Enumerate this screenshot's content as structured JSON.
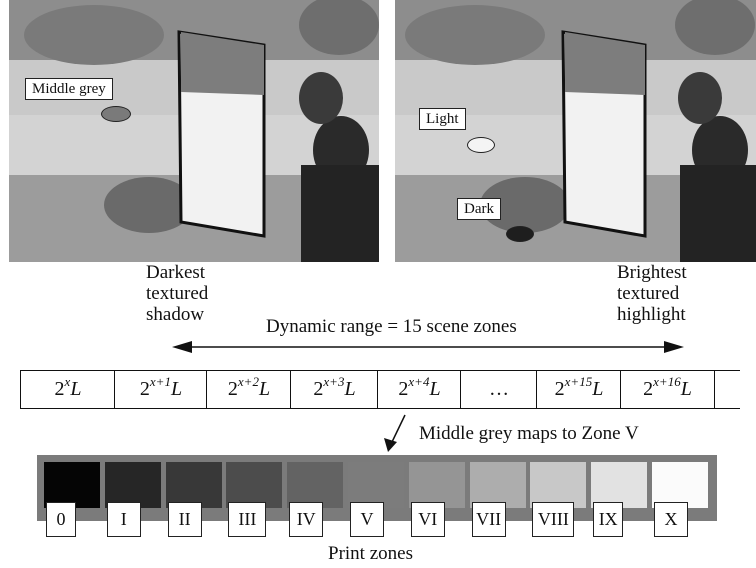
{
  "photos": {
    "left": {
      "annotations": [
        {
          "label": "Middle grey",
          "ellipse_color": "#7a7a7a"
        }
      ]
    },
    "right": {
      "annotations": [
        {
          "label": "Light",
          "ellipse_color": "#f4f4f4"
        },
        {
          "label": "Dark",
          "ellipse_color": "#1e1e1e"
        }
      ]
    }
  },
  "captions": {
    "darkest": [
      "Darkest",
      "textured",
      "shadow"
    ],
    "brightest": [
      "Brightest",
      "textured",
      "highlight"
    ],
    "dynamic_range": "Dynamic range = 15 scene zones"
  },
  "scene_zones": [
    {
      "base": "2",
      "exp": "x",
      "suffix": "L"
    },
    {
      "base": "2",
      "exp": "x+1",
      "suffix": "L"
    },
    {
      "base": "2",
      "exp": "x+2",
      "suffix": "L"
    },
    {
      "base": "2",
      "exp": "x+3",
      "suffix": "L"
    },
    {
      "base": "2",
      "exp": "x+4",
      "suffix": "L"
    },
    {
      "base": "…",
      "exp": "",
      "suffix": ""
    },
    {
      "base": "2",
      "exp": "x+15",
      "suffix": "L"
    },
    {
      "base": "2",
      "exp": "x+16",
      "suffix": "L"
    }
  ],
  "middle_grey_note": "Middle grey maps to Zone V",
  "print_zones": {
    "title": "Print zones",
    "zones": [
      {
        "label": "0",
        "color": "#050505"
      },
      {
        "label": "I",
        "color": "#262626"
      },
      {
        "label": "II",
        "color": "#383838"
      },
      {
        "label": "III",
        "color": "#4c4c4c"
      },
      {
        "label": "IV",
        "color": "#636363"
      },
      {
        "label": "V",
        "color": "#7c7c7c"
      },
      {
        "label": "VI",
        "color": "#959595"
      },
      {
        "label": "VII",
        "color": "#adadad"
      },
      {
        "label": "VIII",
        "color": "#c8c8c8"
      },
      {
        "label": "IX",
        "color": "#e2e2e2"
      },
      {
        "label": "X",
        "color": "#fbfbfb"
      }
    ]
  }
}
